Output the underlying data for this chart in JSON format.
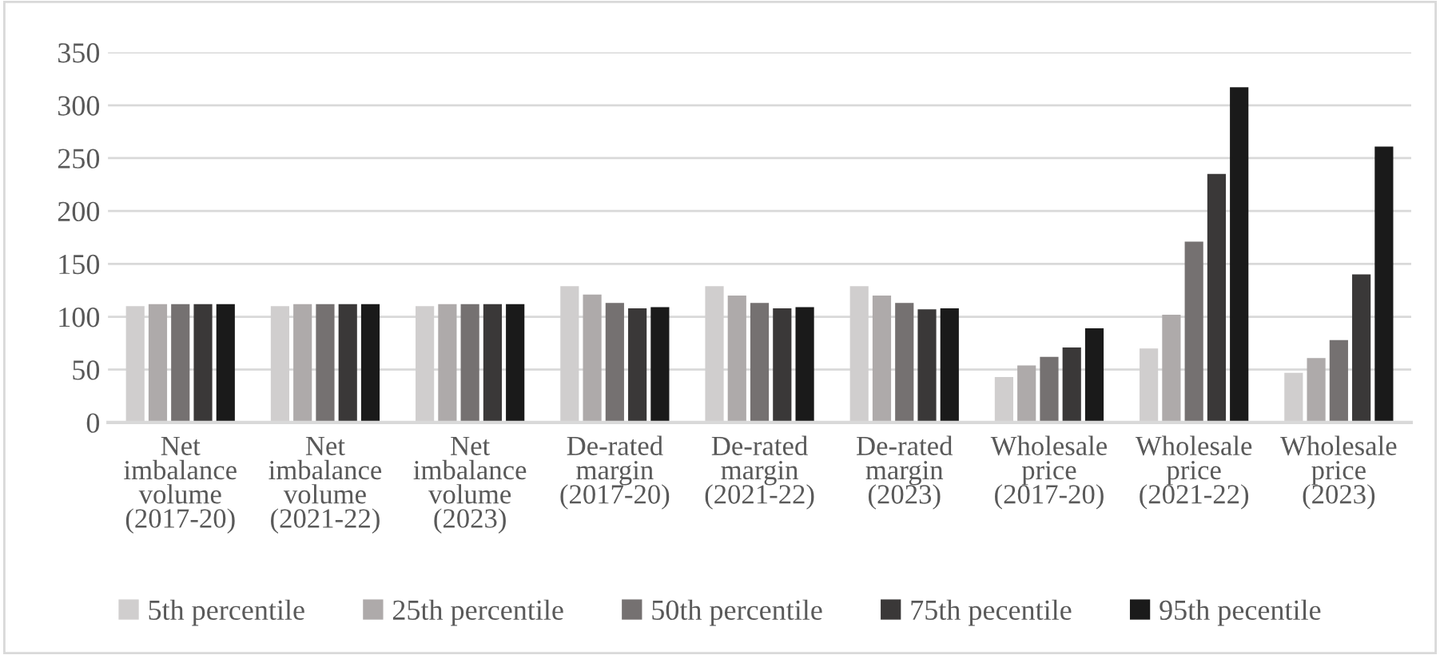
{
  "chart_data": {
    "type": "bar",
    "categories": [
      "Net imbalance volume (2017-20)",
      "Net imbalance volume (2021-22)",
      "Net imbalance volume (2023)",
      "De-rated margin (2017-20)",
      "De-rated margin (2021-22)",
      "De-rated margin (2023)",
      "Wholesale price (2017-20)",
      "Wholesale price (2021-22)",
      "Wholesale price (2023)"
    ],
    "series": [
      {
        "name": "5th percentile",
        "color": "#d0cece",
        "values": [
          110,
          110,
          110,
          129,
          129,
          129,
          43,
          70,
          47
        ]
      },
      {
        "name": "25th percentile",
        "color": "#aeaaaa",
        "values": [
          112,
          112,
          112,
          121,
          120,
          120,
          54,
          102,
          61
        ]
      },
      {
        "name": "50th percentile",
        "color": "#757171",
        "values": [
          112,
          112,
          112,
          113,
          113,
          113,
          62,
          171,
          78
        ]
      },
      {
        "name": "75th pecentile",
        "color": "#3a3838",
        "values": [
          112,
          112,
          112,
          108,
          108,
          107,
          71,
          235,
          140
        ]
      },
      {
        "name": "95th pecentile",
        "color": "#1a1a1a",
        "values": [
          112,
          112,
          112,
          109,
          109,
          108,
          89,
          317,
          261
        ]
      }
    ],
    "ylim": [
      0,
      350
    ],
    "yticks": [
      0,
      50,
      100,
      150,
      200,
      250,
      300,
      350
    ],
    "grid": "y",
    "legend": "bottom"
  }
}
